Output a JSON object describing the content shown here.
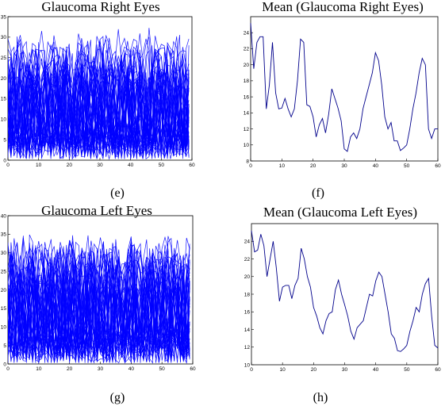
{
  "figure": {
    "captions": [
      "(e)",
      "(f)",
      "(g)",
      "(h)"
    ]
  },
  "chart_data": [
    {
      "type": "line",
      "title": "Glaucoma Right Eyes",
      "xlabel": "",
      "ylabel": "",
      "xlim": [
        0,
        60
      ],
      "ylim": [
        0,
        35
      ],
      "xticks": [
        0,
        10,
        20,
        30,
        40,
        50,
        60
      ],
      "yticks": [
        0,
        5,
        10,
        15,
        20,
        25,
        30,
        35
      ],
      "series_color": "#0000ff",
      "series_count": 50,
      "series_summary": "Many overlapping per-subject traces over 60 samples, values oscillating between about 0 and 33; individual traces are not distinguishable"
    },
    {
      "type": "line",
      "title": "Mean (Glaucoma Right Eyes)",
      "xlabel": "",
      "ylabel": "",
      "xlim": [
        0,
        60
      ],
      "ylim": [
        8,
        26
      ],
      "xticks": [
        0,
        10,
        20,
        30,
        40,
        50,
        60
      ],
      "yticks": [
        8,
        10,
        12,
        14,
        16,
        18,
        20,
        22,
        24
      ],
      "series_color": "#00008b",
      "series": [
        {
          "x": [
            0,
            1,
            2,
            3,
            4,
            5,
            6,
            7,
            8,
            9,
            10,
            11,
            12,
            13,
            14,
            15,
            16,
            17,
            18,
            19,
            20,
            21,
            22,
            23,
            24,
            25,
            26,
            27,
            28,
            29,
            30,
            31,
            32,
            33,
            34,
            35,
            36,
            37,
            38,
            39,
            40,
            41,
            42,
            43,
            44,
            45,
            46,
            47,
            48,
            49,
            50,
            51,
            52,
            53,
            54,
            55,
            56,
            57,
            58,
            59,
            60
          ],
          "y": [
            25.2,
            19.5,
            22.8,
            23.5,
            23.5,
            14.5,
            17.5,
            22.8,
            16.5,
            14.5,
            14.6,
            15.8,
            14.5,
            13.5,
            14.5,
            18.0,
            23.2,
            22.8,
            15.0,
            14.8,
            13.5,
            11.0,
            12.5,
            13.3,
            11.5,
            13.8,
            17.0,
            15.8,
            14.6,
            13.0,
            9.5,
            9.2,
            11.0,
            11.5,
            10.8,
            12.0,
            14.5,
            16.0,
            17.5,
            19.0,
            21.5,
            20.5,
            17.5,
            13.5,
            12.0,
            12.8,
            10.5,
            10.5,
            9.3,
            9.6,
            10.0,
            12.0,
            14.5,
            16.5,
            19.0,
            20.8,
            20.0,
            12.0,
            10.8,
            12.0,
            12.0
          ]
        }
      ]
    },
    {
      "type": "line",
      "title": "Glaucoma Left Eyes",
      "xlabel": "",
      "ylabel": "",
      "xlim": [
        0,
        60
      ],
      "ylim": [
        0,
        40
      ],
      "xticks": [
        0,
        10,
        20,
        30,
        40,
        50,
        60
      ],
      "yticks": [
        0,
        5,
        10,
        15,
        20,
        25,
        30,
        35,
        40
      ],
      "series_color": "#0000ff",
      "series_count": 50,
      "series_summary": "Many overlapping per-subject traces over 60 samples, values oscillating between about 0 and 38; individual traces are not distinguishable"
    },
    {
      "type": "line",
      "title": "Mean (Glaucoma Left Eyes)",
      "xlabel": "",
      "ylabel": "",
      "xlim": [
        0,
        60
      ],
      "ylim": [
        10,
        26
      ],
      "xticks": [
        0,
        10,
        20,
        30,
        40,
        50,
        60
      ],
      "yticks": [
        10,
        12,
        14,
        16,
        18,
        20,
        22,
        24
      ],
      "series_color": "#00008b",
      "series": [
        {
          "x": [
            0,
            1,
            2,
            3,
            4,
            5,
            6,
            7,
            8,
            9,
            10,
            11,
            12,
            13,
            14,
            15,
            16,
            17,
            18,
            19,
            20,
            21,
            22,
            23,
            24,
            25,
            26,
            27,
            28,
            29,
            30,
            31,
            32,
            33,
            34,
            35,
            36,
            37,
            38,
            39,
            40,
            41,
            42,
            43,
            44,
            45,
            46,
            47,
            48,
            49,
            50,
            51,
            52,
            53,
            54,
            55,
            56,
            57,
            58,
            59,
            60
          ],
          "y": [
            25.2,
            22.8,
            23.0,
            24.8,
            23.5,
            20.0,
            22.0,
            24.0,
            21.0,
            17.2,
            18.8,
            19.0,
            19.0,
            17.5,
            19.0,
            19.8,
            23.2,
            22.0,
            20.0,
            18.8,
            16.5,
            15.5,
            14.2,
            13.5,
            15.0,
            15.8,
            16.0,
            18.5,
            19.6,
            18.0,
            16.8,
            15.5,
            13.8,
            12.9,
            14.2,
            14.6,
            15.0,
            16.5,
            18.0,
            17.8,
            19.5,
            20.5,
            20.0,
            18.0,
            16.0,
            13.5,
            13.0,
            11.6,
            11.5,
            11.8,
            12.2,
            13.8,
            15.0,
            16.5,
            16.0,
            18.0,
            19.2,
            19.8,
            15.5,
            12.2,
            11.9
          ]
        }
      ]
    }
  ]
}
